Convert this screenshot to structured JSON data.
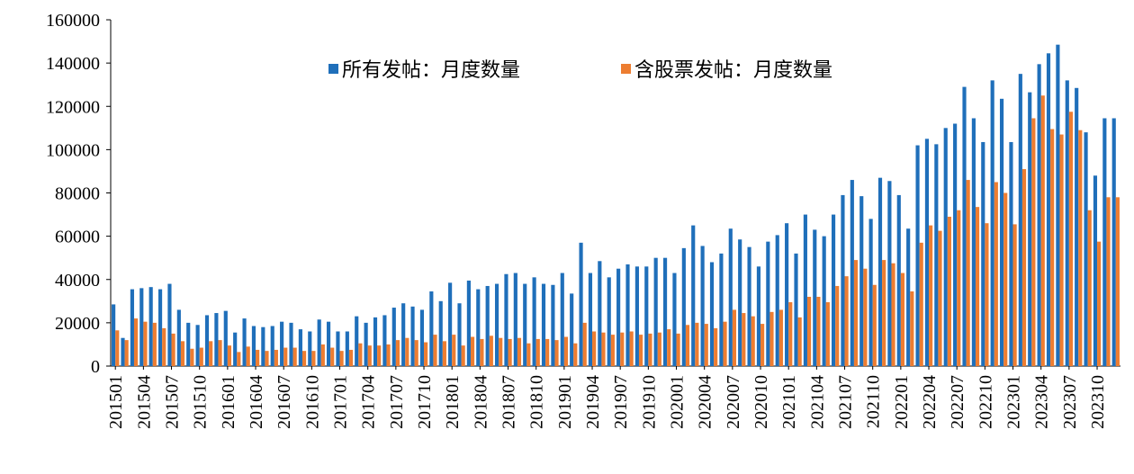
{
  "chart_data": {
    "type": "bar",
    "categories": [
      "201501",
      null,
      null,
      "201504",
      null,
      null,
      "201507",
      null,
      null,
      "201510",
      null,
      null,
      "201601",
      null,
      null,
      "201604",
      null,
      null,
      "201607",
      null,
      null,
      "201610",
      null,
      null,
      "201701",
      null,
      null,
      "201704",
      null,
      null,
      "201707",
      null,
      null,
      "201710",
      null,
      null,
      "201801",
      null,
      null,
      "201804",
      null,
      null,
      "201807",
      null,
      null,
      "201810",
      null,
      null,
      "201901",
      null,
      null,
      "201904",
      null,
      null,
      "201907",
      null,
      null,
      "201910",
      null,
      null,
      "202001",
      null,
      null,
      "202004",
      null,
      null,
      "202007",
      null,
      null,
      "202010",
      null,
      null,
      "202101",
      null,
      null,
      "202104",
      null,
      null,
      "202107",
      null,
      null,
      "202110",
      null,
      null,
      "202201",
      null,
      null,
      "202204",
      null,
      null,
      "202207",
      null,
      null,
      "202210",
      null,
      null,
      "202301",
      null,
      null,
      "202304",
      null,
      null,
      "202307",
      null,
      null,
      "202310",
      null,
      null
    ],
    "series": [
      {
        "name": "所有发帖：月度数量",
        "color": "#1f6fba",
        "values": [
          28500,
          13000,
          35500,
          36000,
          36500,
          35500,
          38000,
          26000,
          20000,
          19000,
          23500,
          24500,
          25500,
          15500,
          22000,
          18500,
          18000,
          18500,
          20500,
          20000,
          17000,
          16000,
          21500,
          20500,
          16000,
          16000,
          23000,
          20000,
          22500,
          23500,
          27000,
          29000,
          27500,
          26000,
          34500,
          30000,
          38500,
          29000,
          39500,
          35500,
          37000,
          38000,
          42500,
          43000,
          38000,
          41000,
          38000,
          37500,
          43000,
          33500,
          57000,
          43000,
          48500,
          41000,
          45000,
          47000,
          46000,
          46000,
          50000,
          50000,
          43000,
          54500,
          65000,
          55500,
          48000,
          52000,
          63500,
          58500,
          55000,
          46000,
          57500,
          60500,
          66000,
          52000,
          70000,
          63000,
          60000,
          70000,
          79000,
          86000,
          78500,
          68000,
          87000,
          85500,
          79000,
          63500,
          102000,
          105000,
          102500,
          110000,
          112000,
          129000,
          114500,
          103500,
          132000,
          123500,
          103500,
          135000,
          126500,
          139500,
          144500,
          148500,
          132000,
          128500,
          108000,
          88000,
          114500,
          114500
        ]
      },
      {
        "name": "含股票发帖：月度数量",
        "color": "#ed7d31",
        "values": [
          16500,
          12000,
          22000,
          20500,
          20000,
          17500,
          15000,
          11500,
          8000,
          8500,
          11500,
          12000,
          9500,
          6500,
          9000,
          7500,
          7000,
          7500,
          8500,
          8500,
          7000,
          7000,
          10000,
          8500,
          7000,
          7500,
          10500,
          9500,
          9500,
          10000,
          12000,
          13000,
          12000,
          11000,
          14500,
          11500,
          14500,
          9500,
          13500,
          12500,
          14000,
          13000,
          12500,
          13000,
          10500,
          12500,
          12500,
          12000,
          13500,
          10500,
          20000,
          16000,
          15500,
          14500,
          15500,
          16000,
          14500,
          15000,
          15500,
          17000,
          15000,
          19000,
          20000,
          19500,
          17500,
          20500,
          26000,
          24500,
          23000,
          19500,
          25000,
          26000,
          29500,
          22500,
          32000,
          32000,
          29500,
          37000,
          41500,
          49000,
          45000,
          37500,
          49000,
          47500,
          43000,
          34500,
          57000,
          65000,
          62500,
          69000,
          72000,
          86000,
          73500,
          66000,
          85000,
          80000,
          65500,
          91000,
          114500,
          125000,
          109500,
          107000,
          117500,
          109000,
          72000,
          57500,
          78000,
          78000
        ]
      }
    ],
    "ylim": [
      0,
      160000
    ],
    "yticks": [
      0,
      20000,
      40000,
      60000,
      80000,
      100000,
      120000,
      140000,
      160000
    ]
  }
}
